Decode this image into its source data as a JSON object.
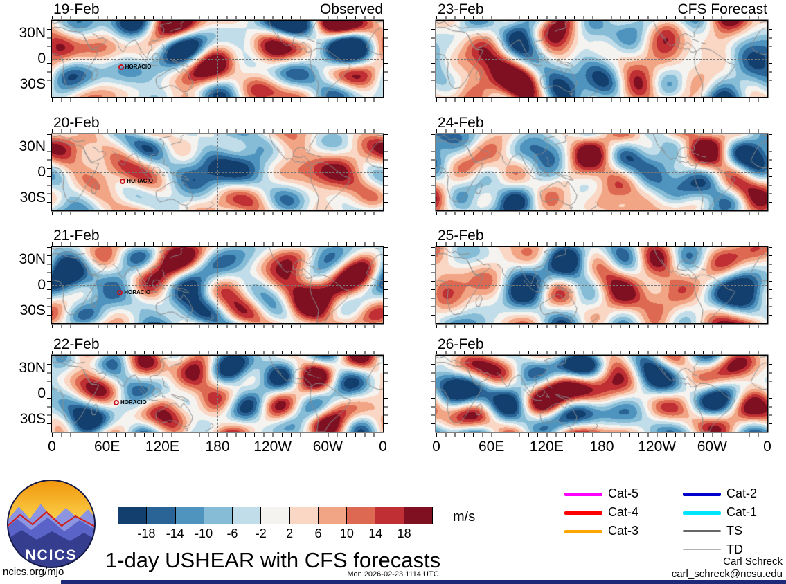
{
  "title": "1-day USHEAR with CFS forecasts",
  "branding": {
    "logo_text": "NCICS",
    "site": "ncics.org/mjo"
  },
  "footer": {
    "timestamp": "Mon 2026-02-23 1114 UTC",
    "author": "Carl Schreck",
    "email": "carl_schreck@ncsu.edu"
  },
  "chart_data": {
    "type": "heatmap",
    "title": "1-day USHEAR with CFS forecasts",
    "variable": "1-day USHEAR",
    "units": "m/s",
    "layout": "4 rows x 2 columns of global maps, lon 0-360E, lat 45S-45N, dashed lines at equator and 180",
    "x_ticks": [
      "0",
      "60E",
      "120E",
      "180",
      "120W",
      "60W",
      "0"
    ],
    "y_ticks": [
      "30N",
      "0",
      "30S"
    ],
    "columns": [
      {
        "header": "Observed",
        "panels": [
          {
            "date": "19-Feb",
            "storm": {
              "name": "HORACIO",
              "lon": 75,
              "lat": -10
            }
          },
          {
            "date": "20-Feb",
            "storm": {
              "name": "HORACIO",
              "lon": 77,
              "lat": -11
            }
          },
          {
            "date": "21-Feb",
            "storm": {
              "name": "HORACIO",
              "lon": 74,
              "lat": -9
            }
          },
          {
            "date": "22-Feb",
            "storm": {
              "name": "HORACIO",
              "lon": 70,
              "lat": -11
            }
          }
        ]
      },
      {
        "header": "CFS Forecast",
        "panels": [
          {
            "date": "23-Feb"
          },
          {
            "date": "24-Feb"
          },
          {
            "date": "25-Feb"
          },
          {
            "date": "26-Feb"
          }
        ]
      }
    ],
    "colorbar": {
      "units": "m/s",
      "levels": [
        -18,
        -14,
        -10,
        -6,
        -2,
        2,
        6,
        10,
        14,
        18
      ],
      "colors": [
        "#123f6d",
        "#2a6496",
        "#4f94bf",
        "#86bcd6",
        "#c0dde9",
        "#f5f3ef",
        "#f9d7c4",
        "#f1a584",
        "#de6952",
        "#bf2f33",
        "#7e1021"
      ]
    },
    "legend": [
      {
        "label": "Cat-5",
        "color": "#ff00ff",
        "weight": 5
      },
      {
        "label": "Cat-4",
        "color": "#ff0000",
        "weight": 5
      },
      {
        "label": "Cat-3",
        "color": "#ffa500",
        "weight": 5
      },
      {
        "label": "Cat-2",
        "color": "#0000cd",
        "weight": 5
      },
      {
        "label": "Cat-1",
        "color": "#00e5ff",
        "weight": 5
      },
      {
        "label": "TS",
        "color": "#666666",
        "weight": 3
      },
      {
        "label": "TD",
        "color": "#b3b3b3",
        "weight": 1.5
      }
    ]
  }
}
